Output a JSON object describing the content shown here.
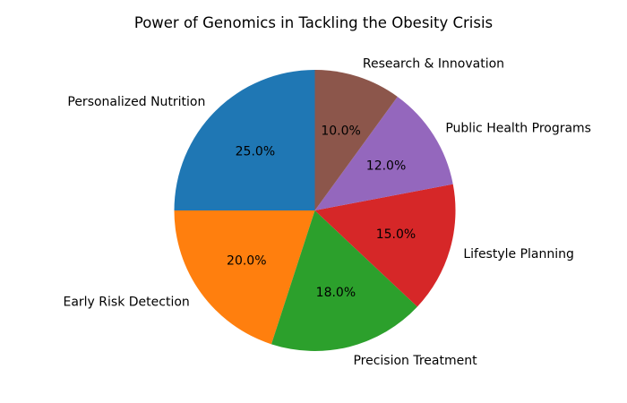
{
  "title": "Power of Genomics in Tackling the Obesity Crisis",
  "chart_data": {
    "type": "pie",
    "title": "Power of Genomics in Tackling the Obesity Crisis",
    "categories": [
      "Personalized Nutrition",
      "Early Risk Detection",
      "Precision Treatment",
      "Lifestyle Planning",
      "Public Health Programs",
      "Research & Innovation"
    ],
    "values": [
      25.0,
      20.0,
      18.0,
      15.0,
      12.0,
      10.0
    ],
    "percent_labels": [
      "25.0%",
      "20.0%",
      "18.0%",
      "15.0%",
      "12.0%",
      "10.0%"
    ],
    "colors": [
      "#1f77b4",
      "#ff7f0e",
      "#2ca02c",
      "#d62728",
      "#9467bd",
      "#8c564b"
    ],
    "start_angle_deg": 90,
    "direction": "counterclockwise",
    "legend": "none",
    "label_distance": 1.1,
    "pct_distance": 0.6,
    "text_color": "#000000",
    "background_color": "#ffffff"
  }
}
